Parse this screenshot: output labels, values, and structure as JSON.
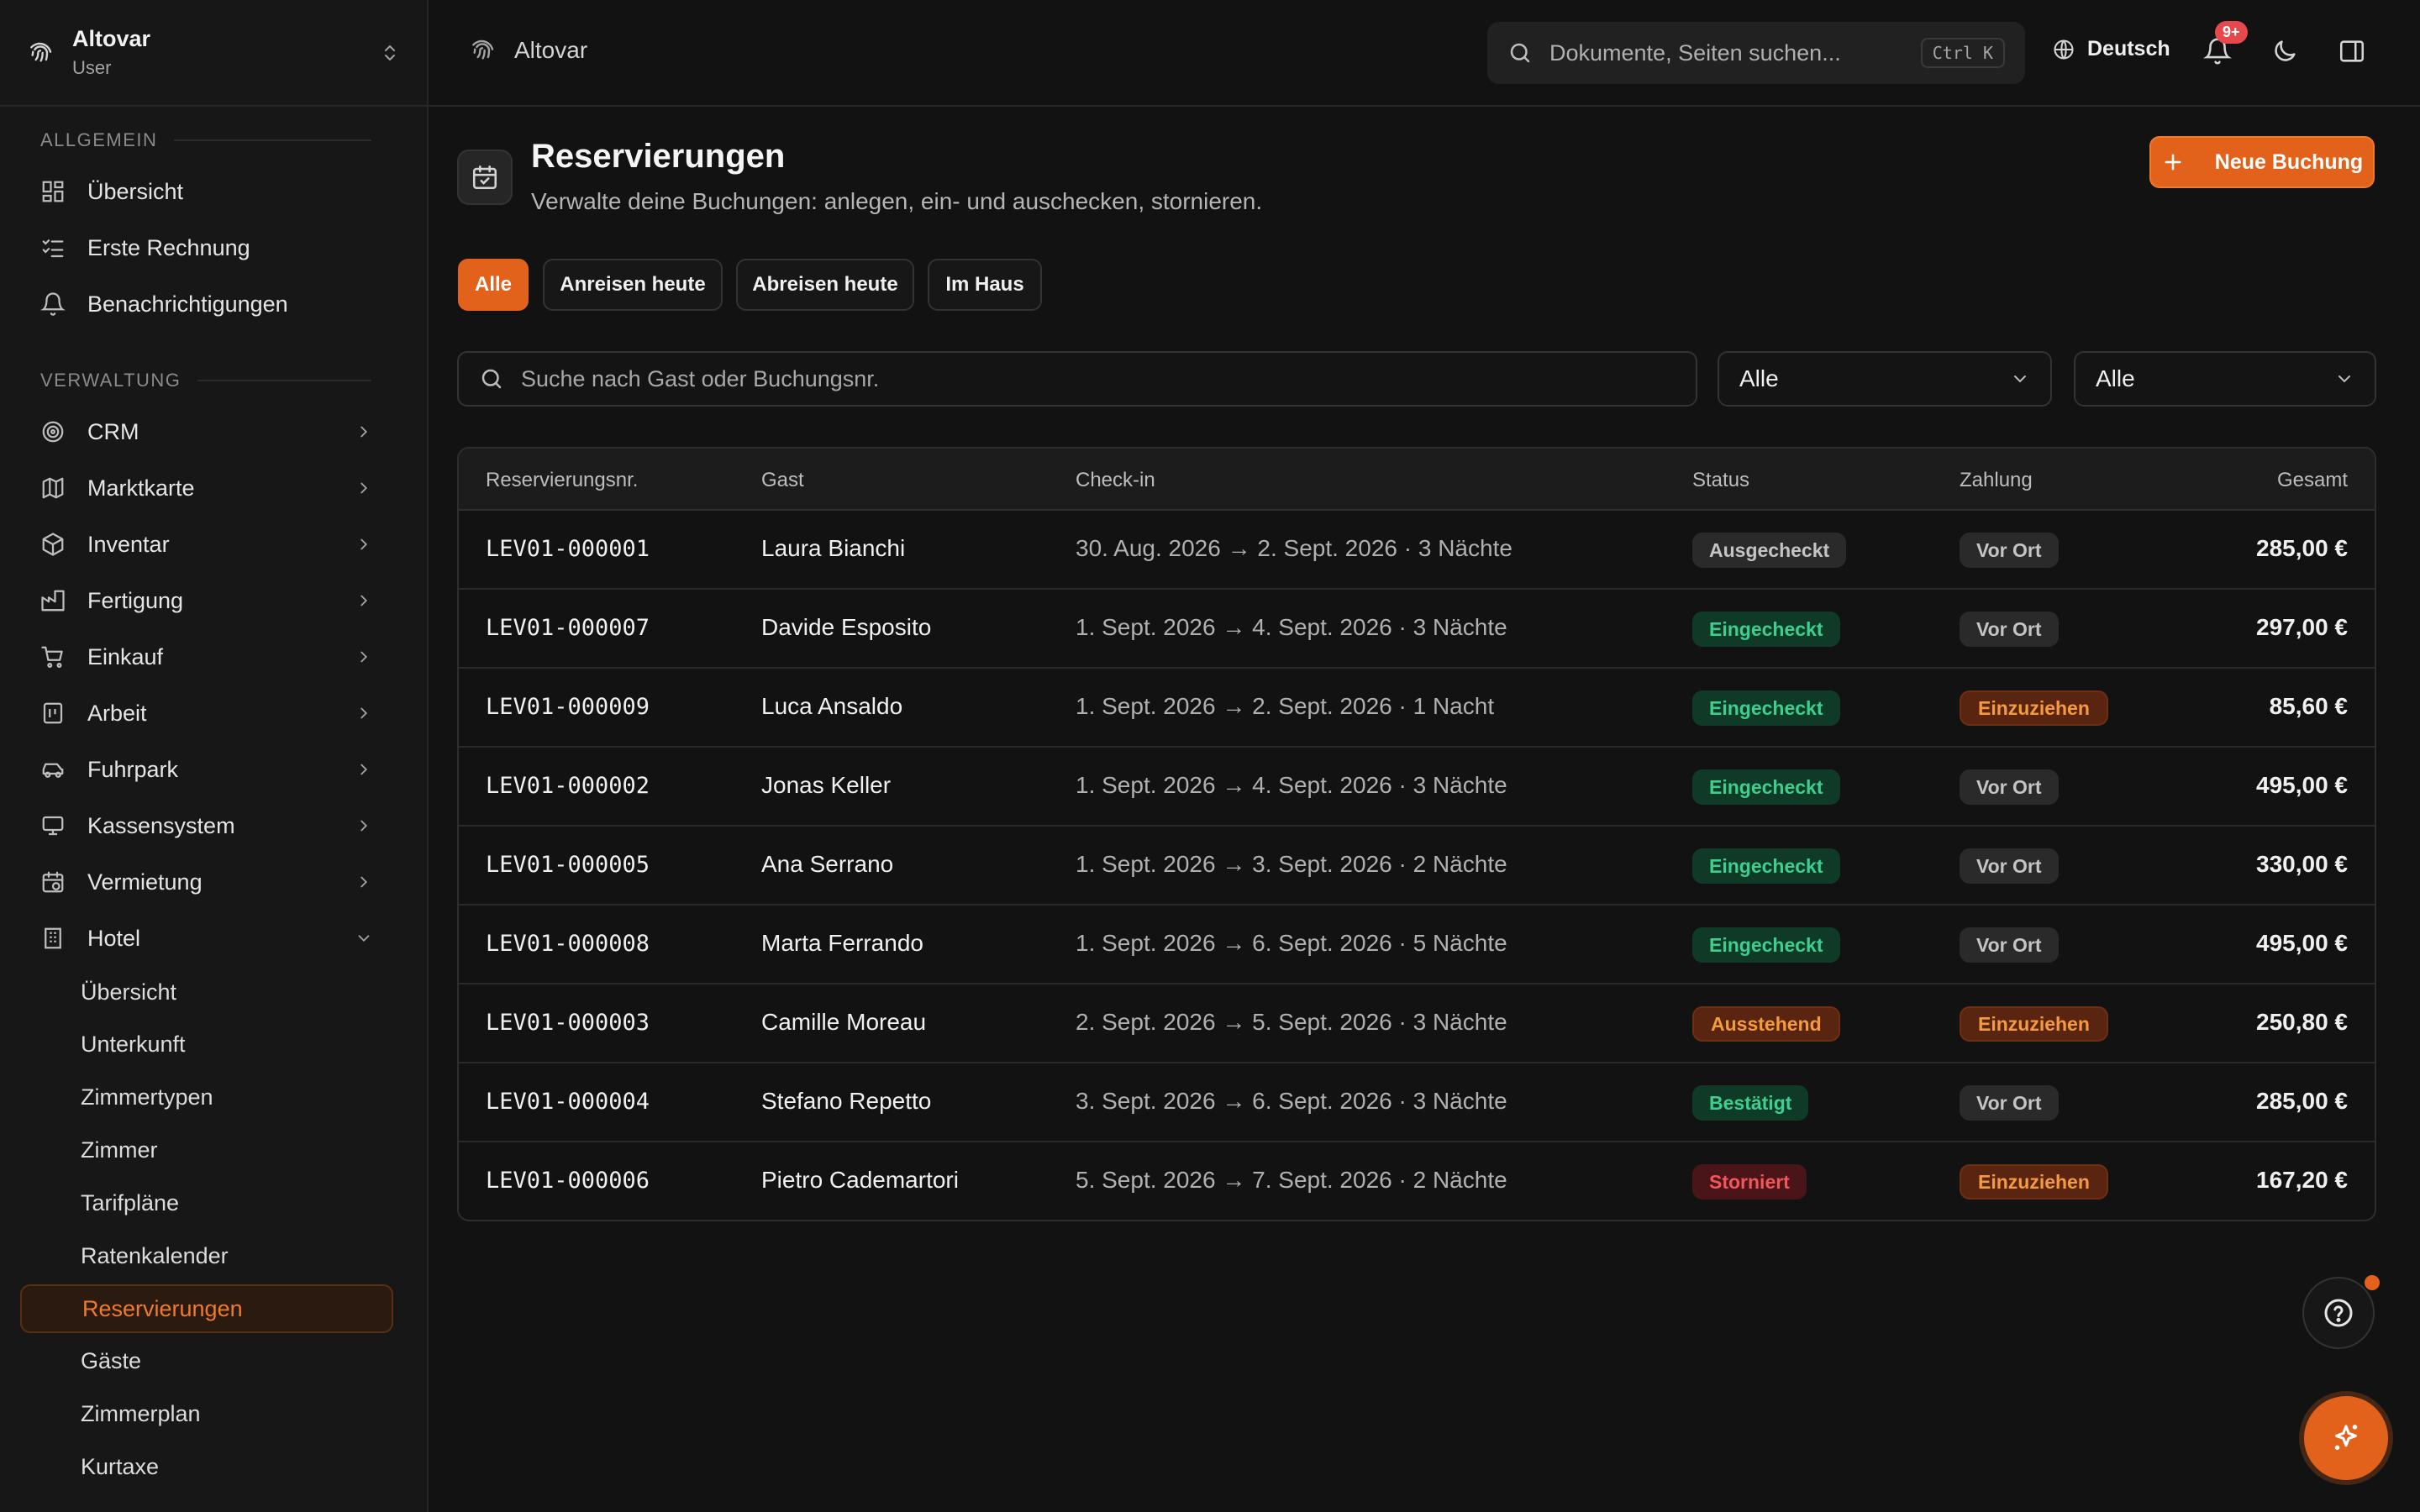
{
  "sidebar": {
    "brand_name": "Altovar",
    "brand_role": "User",
    "section_general": "ALLGEMEIN",
    "section_admin": "VERWALTUNG",
    "general_items": [
      {
        "label": "Übersicht",
        "icon": "dashboard-icon"
      },
      {
        "label": "Erste Rechnung",
        "icon": "checklist-icon"
      },
      {
        "label": "Benachrichtigungen",
        "icon": "bell-icon"
      }
    ],
    "admin_items": [
      {
        "label": "CRM",
        "icon": "target-icon"
      },
      {
        "label": "Marktkarte",
        "icon": "map-icon"
      },
      {
        "label": "Inventar",
        "icon": "box-icon"
      },
      {
        "label": "Fertigung",
        "icon": "factory-icon"
      },
      {
        "label": "Einkauf",
        "icon": "cart-icon"
      },
      {
        "label": "Arbeit",
        "icon": "clipboard-icon"
      },
      {
        "label": "Fuhrpark",
        "icon": "car-icon"
      },
      {
        "label": "Kassensystem",
        "icon": "monitor-icon"
      },
      {
        "label": "Vermietung",
        "icon": "calendar-clock-icon"
      },
      {
        "label": "Hotel",
        "icon": "building-icon"
      }
    ],
    "hotel_items": [
      "Übersicht",
      "Unterkunft",
      "Zimmertypen",
      "Zimmer",
      "Tarifpläne",
      "Ratenkalender",
      "Reservierungen",
      "Gäste",
      "Zimmerplan",
      "Kurtaxe"
    ]
  },
  "header": {
    "breadcrumb": "Altovar",
    "search_placeholder": "Dokumente, Seiten suchen...",
    "search_shortcut": "Ctrl K",
    "language": "Deutsch",
    "notification_count": "9+"
  },
  "page": {
    "title": "Reservierungen",
    "subtitle": "Verwalte deine Buchungen: anlegen, ein- und auschecken, stornieren.",
    "new_button": "Neue Buchung",
    "filters": [
      "Alle",
      "Anreisen heute",
      "Abreisen heute",
      "Im Haus"
    ],
    "table_search_placeholder": "Suche nach Gast oder Buchungsnr.",
    "select_status": "Alle",
    "select_payment": "Alle"
  },
  "table": {
    "headers": [
      "Reservierungsnr.",
      "Gast",
      "Check-in",
      "Status",
      "Zahlung",
      "Gesamt"
    ],
    "rows": [
      {
        "id": "LEV01-000001",
        "guest": "Laura Bianchi",
        "checkin": "30. Aug. 2026 → 2. Sept. 2026 · 3 Nächte",
        "status": "Ausgecheckt",
        "status_style": "gray",
        "payment": "Vor Ort",
        "payment_style": "gray",
        "total": "285,00 €"
      },
      {
        "id": "LEV01-000007",
        "guest": "Davide Esposito",
        "checkin": "1. Sept. 2026 → 4. Sept. 2026 · 3 Nächte",
        "status": "Eingecheckt",
        "status_style": "green",
        "payment": "Vor Ort",
        "payment_style": "gray",
        "total": "297,00 €"
      },
      {
        "id": "LEV01-000009",
        "guest": "Luca Ansaldo",
        "checkin": "1. Sept. 2026 → 2. Sept. 2026 · 1 Nacht",
        "status": "Eingecheckt",
        "status_style": "green",
        "payment": "Einzuziehen",
        "payment_style": "orange",
        "total": "85,60 €"
      },
      {
        "id": "LEV01-000002",
        "guest": "Jonas Keller",
        "checkin": "1. Sept. 2026 → 4. Sept. 2026 · 3 Nächte",
        "status": "Eingecheckt",
        "status_style": "green",
        "payment": "Vor Ort",
        "payment_style": "gray",
        "total": "495,00 €"
      },
      {
        "id": "LEV01-000005",
        "guest": "Ana Serrano",
        "checkin": "1. Sept. 2026 → 3. Sept. 2026 · 2 Nächte",
        "status": "Eingecheckt",
        "status_style": "green",
        "payment": "Vor Ort",
        "payment_style": "gray",
        "total": "330,00 €"
      },
      {
        "id": "LEV01-000008",
        "guest": "Marta Ferrando",
        "checkin": "1. Sept. 2026 → 6. Sept. 2026 · 5 Nächte",
        "status": "Eingecheckt",
        "status_style": "green",
        "payment": "Vor Ort",
        "payment_style": "gray",
        "total": "495,00 €"
      },
      {
        "id": "LEV01-000003",
        "guest": "Camille Moreau",
        "checkin": "2. Sept. 2026 → 5. Sept. 2026 · 3 Nächte",
        "status": "Ausstehend",
        "status_style": "orange",
        "payment": "Einzuziehen",
        "payment_style": "orange",
        "total": "250,80 €"
      },
      {
        "id": "LEV01-000004",
        "guest": "Stefano Repetto",
        "checkin": "3. Sept. 2026 → 6. Sept. 2026 · 3 Nächte",
        "status": "Bestätigt",
        "status_style": "green",
        "payment": "Vor Ort",
        "payment_style": "gray",
        "total": "285,00 €"
      },
      {
        "id": "LEV01-000006",
        "guest": "Pietro Cademartori",
        "checkin": "5. Sept. 2026 → 7. Sept. 2026 · 2 Nächte",
        "status": "Storniert",
        "status_style": "red",
        "payment": "Einzuziehen",
        "payment_style": "orange",
        "total": "167,20 €"
      }
    ]
  },
  "colors": {
    "accent": "#e2621b",
    "background": "#121212",
    "status_green": "#3ccf8e",
    "status_red": "#f2555a"
  }
}
